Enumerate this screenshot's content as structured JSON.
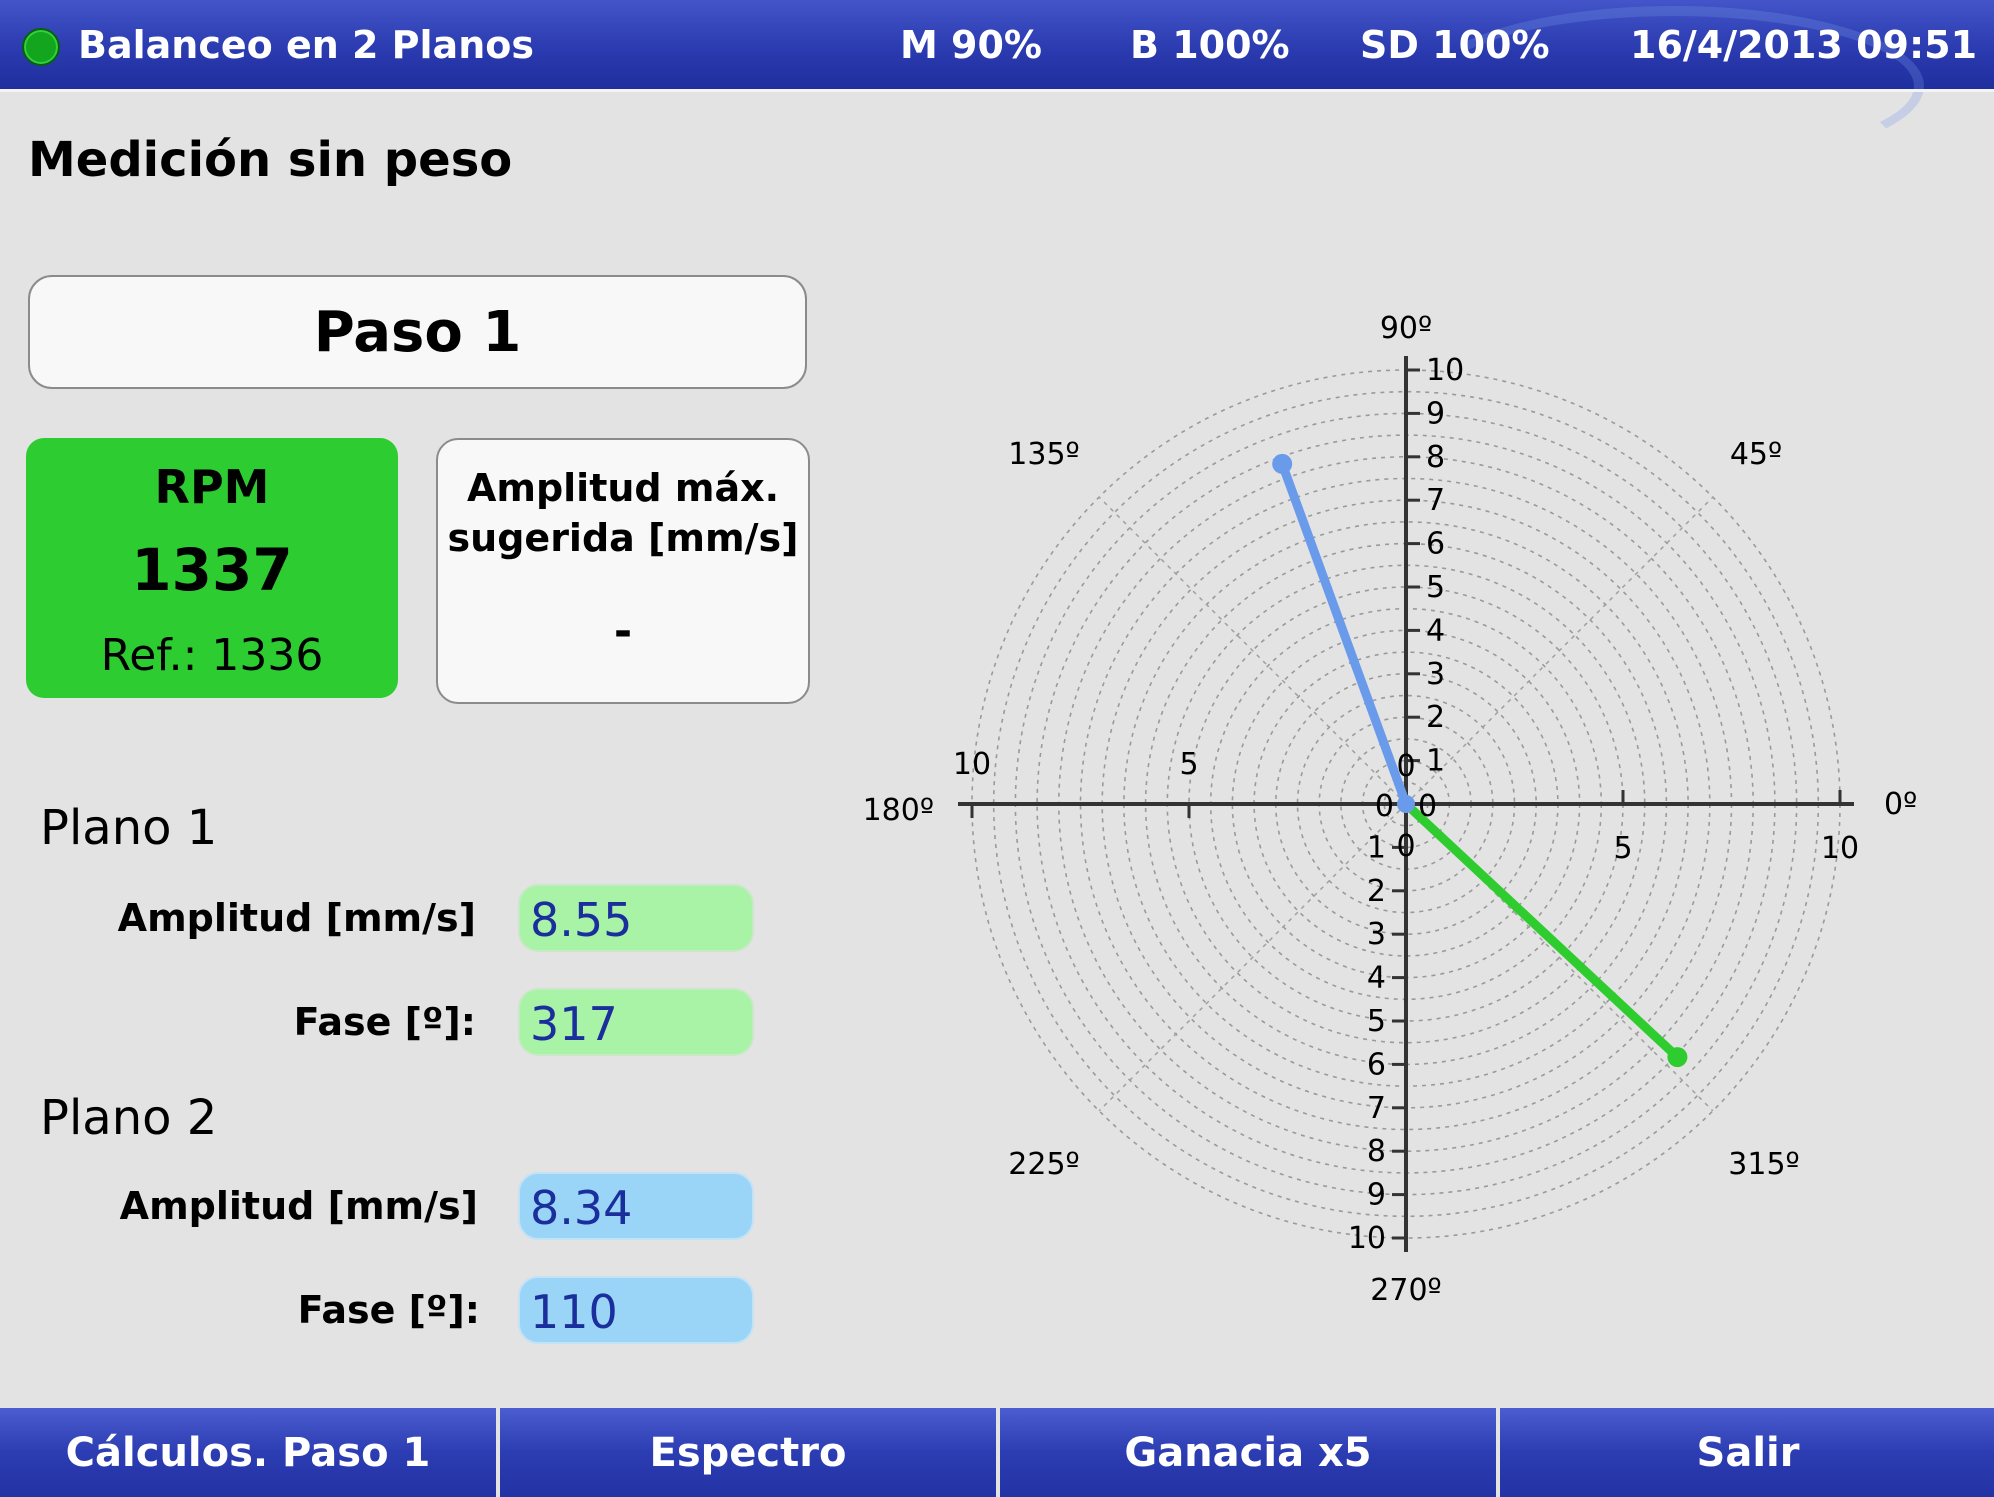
{
  "header": {
    "title": "Balanceo en 2 Planos",
    "memory": "M 90%",
    "battery": "B 100%",
    "sd": "SD 100%",
    "datetime": "16/4/2013 09:51",
    "led_color": "#12a51d"
  },
  "page_title": "Medición sin peso",
  "step": "Paso 1",
  "rpm": {
    "label": "RPM",
    "value": "1337",
    "ref": "Ref.: 1336",
    "color": "#2dcd32"
  },
  "max_amplitude": {
    "line1": "Amplitud máx.",
    "line2": "sugerida [mm/s]",
    "value": "-"
  },
  "plane1": {
    "title": "Plano 1",
    "amplitude_label": "Amplitud [mm/s]",
    "amplitude": "8.55",
    "phase_label": "Fase [º]:",
    "phase": "317",
    "color": "#2ecc2e"
  },
  "plane2": {
    "title": "Plano 2",
    "amplitude_label": "Amplitud [mm/s]",
    "amplitude": "8.34",
    "phase_label": "Fase [º]:",
    "phase": "110",
    "color": "#6a9bea"
  },
  "chart_data": {
    "type": "polar",
    "r_max": 10,
    "ring_count": 20,
    "angle_labels": [
      "0º",
      "45º",
      "90º",
      "135º",
      "180º",
      "225º",
      "270º",
      "315º"
    ],
    "angles": [
      0,
      45,
      90,
      135,
      180,
      225,
      270,
      315
    ],
    "vertical_ticks": [
      "0",
      "1",
      "2",
      "3",
      "4",
      "5",
      "6",
      "7",
      "8",
      "9",
      "10"
    ],
    "horizontal_ticks": [
      "0",
      "5",
      "10"
    ],
    "series": [
      {
        "name": "Plano 1",
        "magnitude": 8.55,
        "angle": 317,
        "color": "#2ecc2e"
      },
      {
        "name": "Plano 2",
        "magnitude": 8.34,
        "angle": 110,
        "color": "#6a9bea"
      }
    ]
  },
  "softkeys": [
    "Cálculos. Paso 1",
    "Espectro",
    "Ganacia x5",
    "Salir"
  ]
}
